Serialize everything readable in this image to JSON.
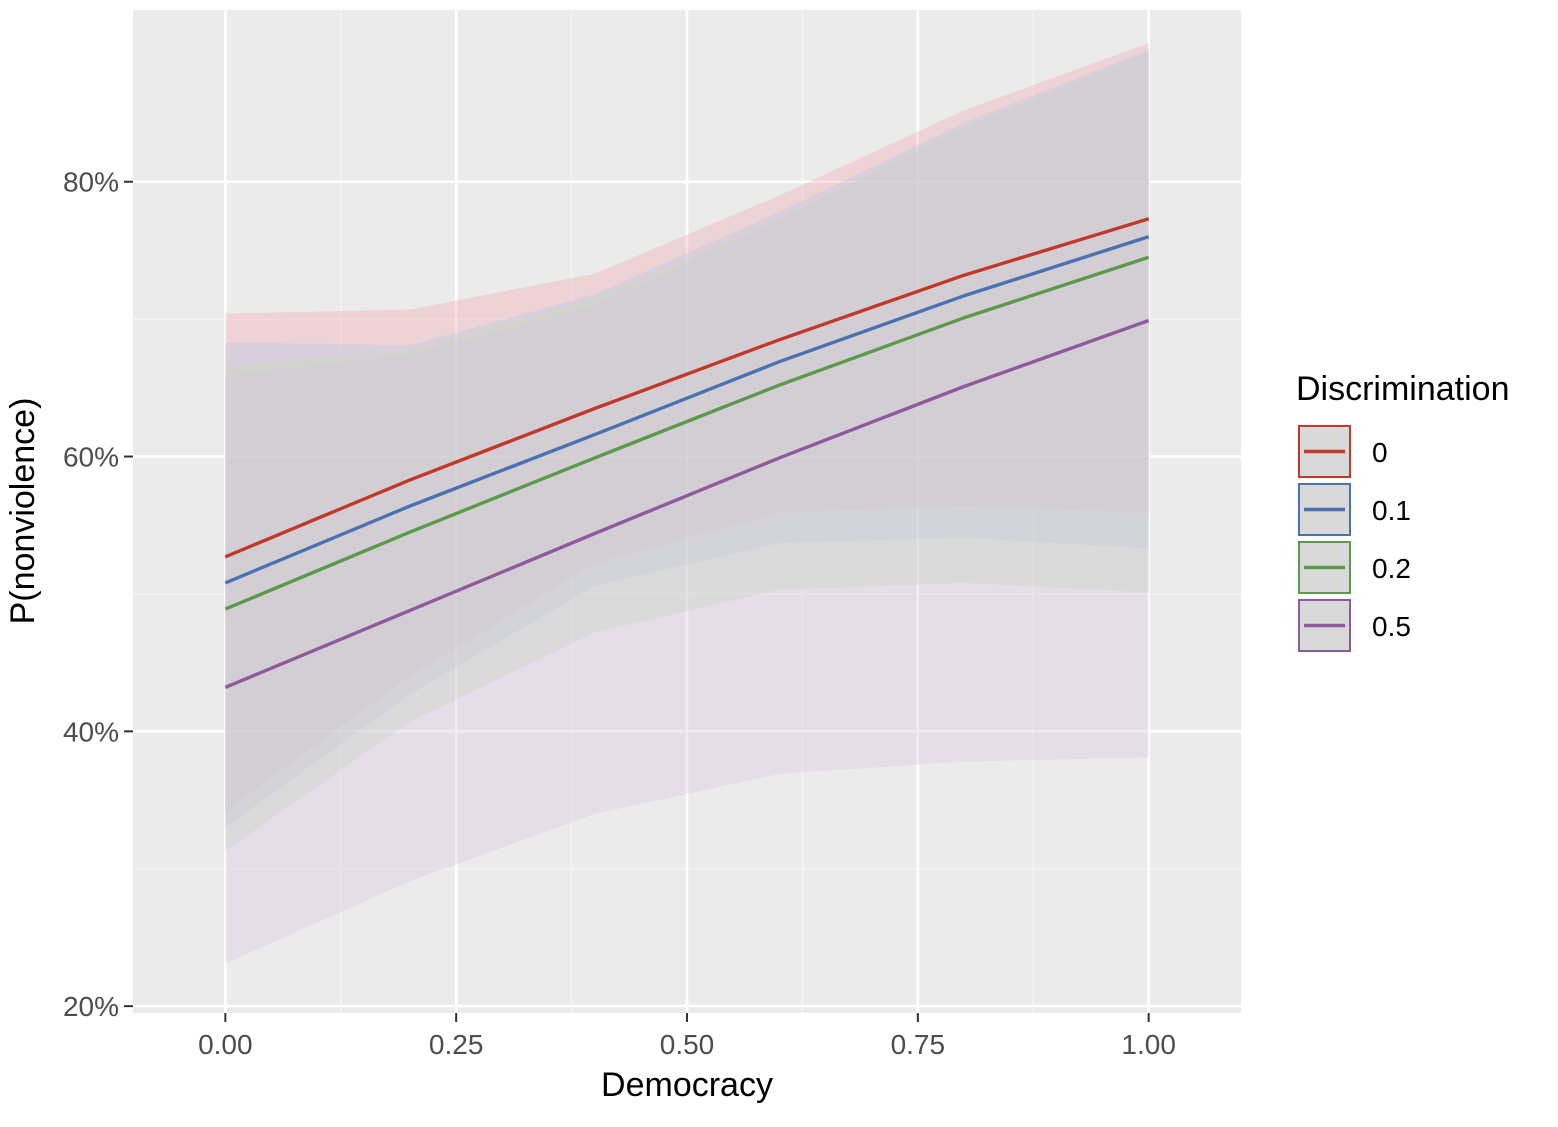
{
  "chart_data": {
    "type": "line",
    "xlabel": "Democracy",
    "ylabel": "P(nonviolence)",
    "xlim": [
      -0.1,
      1.1
    ],
    "ylim": [
      19.5,
      92.5
    ],
    "x_ticks": [
      0,
      0.25,
      0.5,
      0.75,
      1.0
    ],
    "x_tick_labels": [
      "0.00",
      "0.25",
      "0.50",
      "0.75",
      "1.00"
    ],
    "y_ticks": [
      20,
      40,
      60,
      80
    ],
    "y_tick_labels": [
      "20%",
      "40%",
      "60%",
      "80%"
    ],
    "grid": true,
    "x": [
      0,
      0.2,
      0.4,
      0.6,
      0.8,
      1.0
    ],
    "legend": {
      "title": "Discrimination",
      "placement": "right"
    },
    "series": [
      {
        "name": "0",
        "color": "#c0392b",
        "fill": "#f4a6b0",
        "values": [
          52.7,
          58.3,
          63.5,
          68.5,
          73.2,
          77.3
        ],
        "lower": [
          34.2,
          44.0,
          52.2,
          55.9,
          56.4,
          55.9
        ],
        "upper": [
          70.4,
          70.7,
          73.3,
          79.0,
          85.2,
          90.1
        ]
      },
      {
        "name": "0.1",
        "color": "#4a72b0",
        "fill": "#b3c7e6",
        "values": [
          50.8,
          56.4,
          61.6,
          66.9,
          71.7,
          76.0
        ],
        "lower": [
          33.0,
          42.7,
          50.6,
          53.7,
          54.1,
          53.3
        ],
        "upper": [
          68.3,
          68.1,
          71.8,
          77.8,
          84.3,
          89.6
        ]
      },
      {
        "name": "0.2",
        "color": "#5a9a4a",
        "fill": "#bfe0b3",
        "values": [
          48.9,
          54.5,
          59.9,
          65.2,
          70.1,
          74.5
        ],
        "lower": [
          31.3,
          40.7,
          47.2,
          50.3,
          50.8,
          50.1
        ],
        "upper": [
          66.6,
          67.7,
          71.5,
          77.3,
          84.0,
          89.4
        ]
      },
      {
        "name": "0.5",
        "color": "#8e5a9e",
        "fill": "#d9c2e3",
        "values": [
          43.2,
          48.8,
          54.4,
          59.9,
          65.1,
          69.9
        ],
        "lower": [
          23.1,
          29.1,
          34.0,
          36.9,
          37.8,
          38.1
        ],
        "upper": [
          65.9,
          67.4,
          71.0,
          77.2,
          83.9,
          89.4
        ]
      }
    ]
  }
}
